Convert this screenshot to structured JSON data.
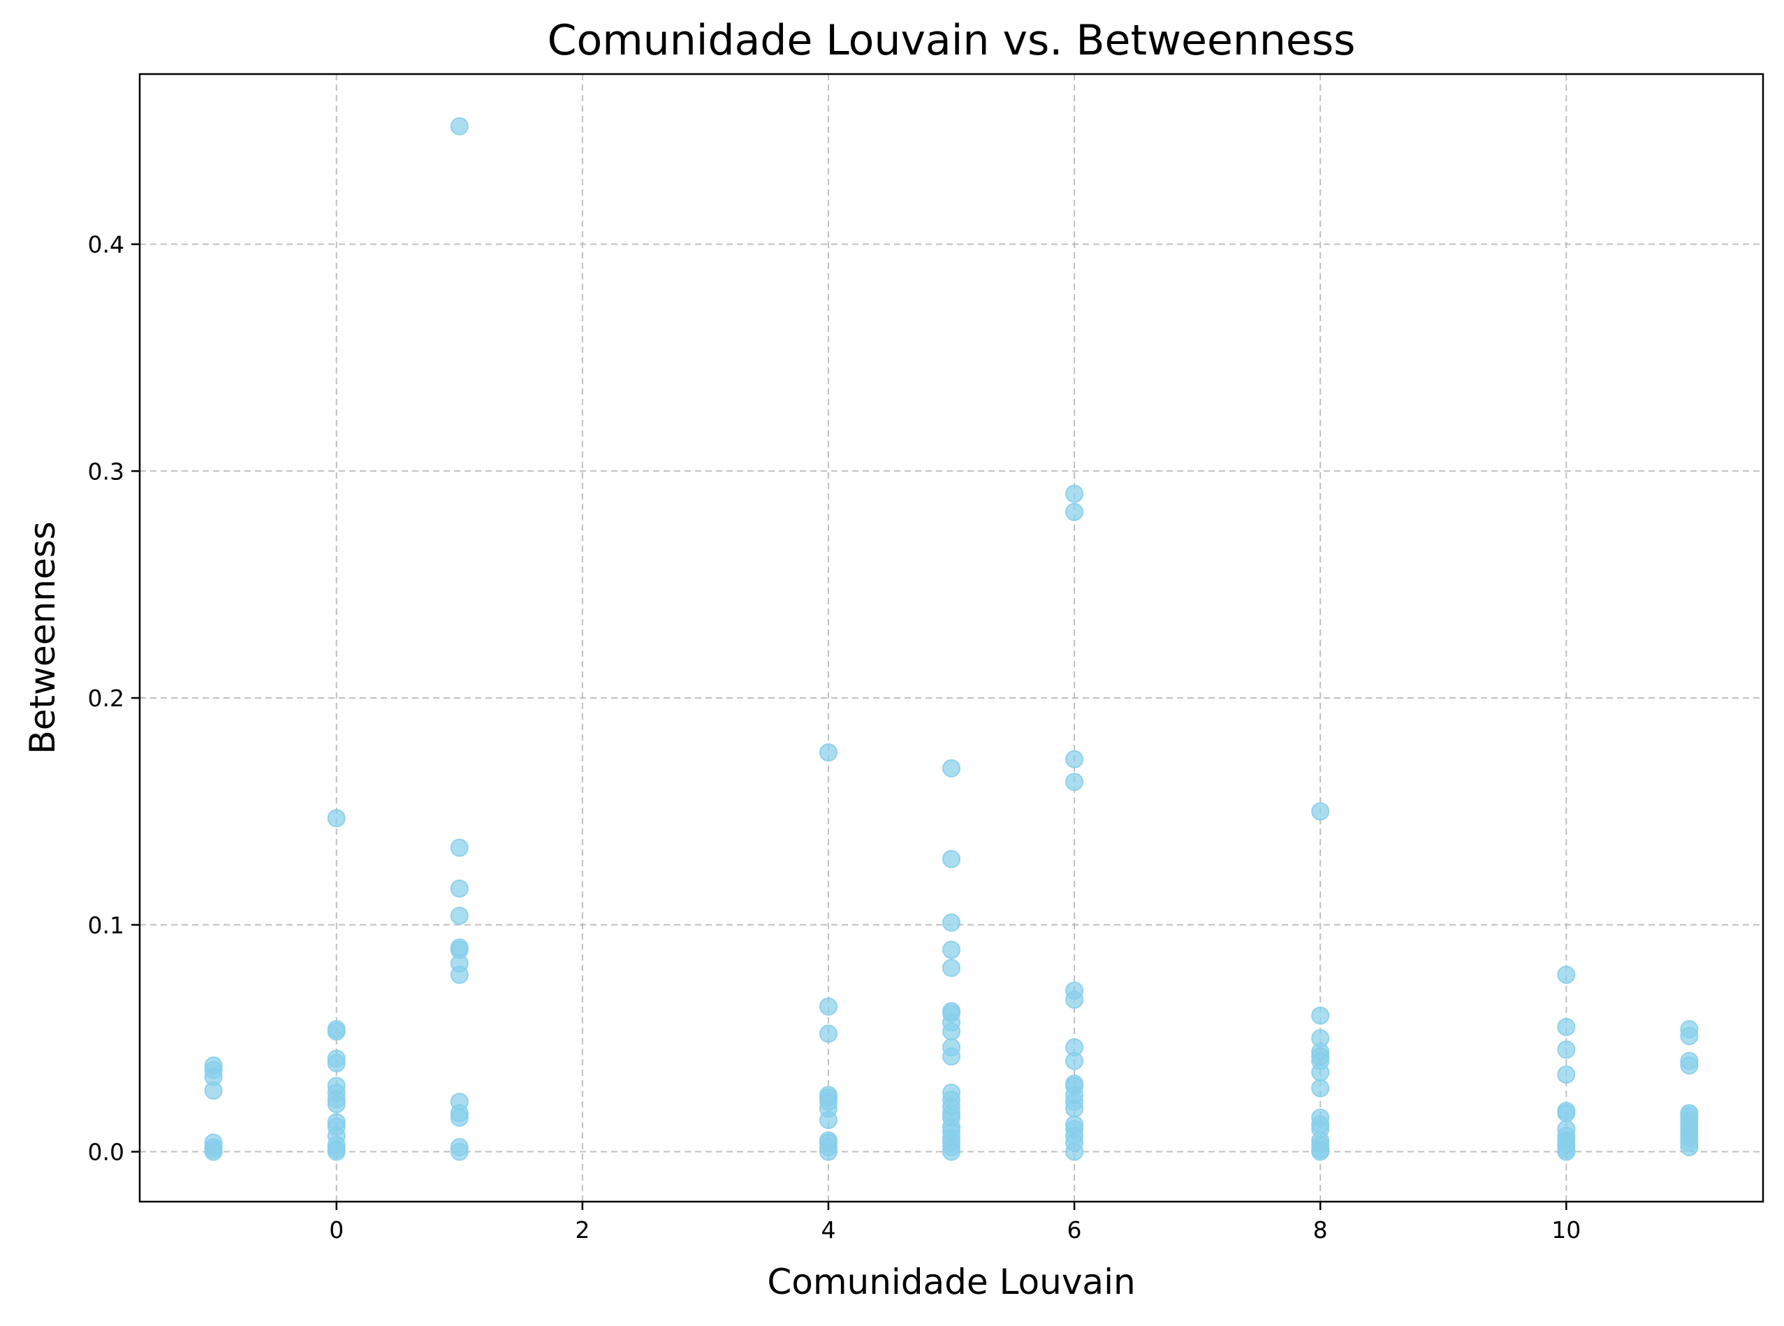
{
  "chart_data": {
    "type": "scatter",
    "title": "Comunidade Louvain vs. Betweenness",
    "xlabel": "Comunidade Louvain",
    "ylabel": "Betweenness",
    "xlim": [
      -1.6,
      11.6
    ],
    "ylim": [
      -0.022,
      0.475
    ],
    "xticks": [
      0,
      2,
      4,
      6,
      8,
      10
    ],
    "xtick_labels": [
      "0",
      "2",
      "4",
      "6",
      "8",
      "10"
    ],
    "yticks": [
      0.0,
      0.1,
      0.2,
      0.3,
      0.4
    ],
    "ytick_labels": [
      "0.0",
      "0.1",
      "0.2",
      "0.3",
      "0.4"
    ],
    "grid": true,
    "color": "#87ceeb",
    "points": [
      {
        "x": -1,
        "y": 0.038
      },
      {
        "x": -1,
        "y": 0.036
      },
      {
        "x": -1,
        "y": 0.033
      },
      {
        "x": -1,
        "y": 0.027
      },
      {
        "x": -1,
        "y": 0.004
      },
      {
        "x": -1,
        "y": 0.002
      },
      {
        "x": -1,
        "y": 0.001
      },
      {
        "x": -1,
        "y": 0.0
      },
      {
        "x": 0,
        "y": 0.147
      },
      {
        "x": 0,
        "y": 0.054
      },
      {
        "x": 0,
        "y": 0.053
      },
      {
        "x": 0,
        "y": 0.041
      },
      {
        "x": 0,
        "y": 0.039
      },
      {
        "x": 0,
        "y": 0.029
      },
      {
        "x": 0,
        "y": 0.026
      },
      {
        "x": 0,
        "y": 0.023
      },
      {
        "x": 0,
        "y": 0.021
      },
      {
        "x": 0,
        "y": 0.013
      },
      {
        "x": 0,
        "y": 0.011
      },
      {
        "x": 0,
        "y": 0.007
      },
      {
        "x": 0,
        "y": 0.003
      },
      {
        "x": 0,
        "y": 0.001
      },
      {
        "x": 0,
        "y": 0.0
      },
      {
        "x": 1,
        "y": 0.452
      },
      {
        "x": 1,
        "y": 0.134
      },
      {
        "x": 1,
        "y": 0.116
      },
      {
        "x": 1,
        "y": 0.104
      },
      {
        "x": 1,
        "y": 0.09
      },
      {
        "x": 1,
        "y": 0.089
      },
      {
        "x": 1,
        "y": 0.083
      },
      {
        "x": 1,
        "y": 0.078
      },
      {
        "x": 1,
        "y": 0.022
      },
      {
        "x": 1,
        "y": 0.017
      },
      {
        "x": 1,
        "y": 0.015
      },
      {
        "x": 1,
        "y": 0.002
      },
      {
        "x": 1,
        "y": 0.0
      },
      {
        "x": 4,
        "y": 0.176
      },
      {
        "x": 4,
        "y": 0.064
      },
      {
        "x": 4,
        "y": 0.052
      },
      {
        "x": 4,
        "y": 0.025
      },
      {
        "x": 4,
        "y": 0.024
      },
      {
        "x": 4,
        "y": 0.022
      },
      {
        "x": 4,
        "y": 0.019
      },
      {
        "x": 4,
        "y": 0.014
      },
      {
        "x": 4,
        "y": 0.005
      },
      {
        "x": 4,
        "y": 0.004
      },
      {
        "x": 4,
        "y": 0.002
      },
      {
        "x": 4,
        "y": 0.0
      },
      {
        "x": 5,
        "y": 0.169
      },
      {
        "x": 5,
        "y": 0.129
      },
      {
        "x": 5,
        "y": 0.101
      },
      {
        "x": 5,
        "y": 0.089
      },
      {
        "x": 5,
        "y": 0.081
      },
      {
        "x": 5,
        "y": 0.062
      },
      {
        "x": 5,
        "y": 0.061
      },
      {
        "x": 5,
        "y": 0.057
      },
      {
        "x": 5,
        "y": 0.053
      },
      {
        "x": 5,
        "y": 0.046
      },
      {
        "x": 5,
        "y": 0.042
      },
      {
        "x": 5,
        "y": 0.026
      },
      {
        "x": 5,
        "y": 0.023
      },
      {
        "x": 5,
        "y": 0.02
      },
      {
        "x": 5,
        "y": 0.017
      },
      {
        "x": 5,
        "y": 0.015
      },
      {
        "x": 5,
        "y": 0.011
      },
      {
        "x": 5,
        "y": 0.009
      },
      {
        "x": 5,
        "y": 0.006
      },
      {
        "x": 5,
        "y": 0.004
      },
      {
        "x": 5,
        "y": 0.002
      },
      {
        "x": 5,
        "y": 0.0
      },
      {
        "x": 6,
        "y": 0.29
      },
      {
        "x": 6,
        "y": 0.282
      },
      {
        "x": 6,
        "y": 0.173
      },
      {
        "x": 6,
        "y": 0.163
      },
      {
        "x": 6,
        "y": 0.071
      },
      {
        "x": 6,
        "y": 0.067
      },
      {
        "x": 6,
        "y": 0.046
      },
      {
        "x": 6,
        "y": 0.04
      },
      {
        "x": 6,
        "y": 0.03
      },
      {
        "x": 6,
        "y": 0.029
      },
      {
        "x": 6,
        "y": 0.025
      },
      {
        "x": 6,
        "y": 0.022
      },
      {
        "x": 6,
        "y": 0.019
      },
      {
        "x": 6,
        "y": 0.012
      },
      {
        "x": 6,
        "y": 0.01
      },
      {
        "x": 6,
        "y": 0.007
      },
      {
        "x": 6,
        "y": 0.004
      },
      {
        "x": 6,
        "y": 0.0
      },
      {
        "x": 8,
        "y": 0.15
      },
      {
        "x": 8,
        "y": 0.06
      },
      {
        "x": 8,
        "y": 0.05
      },
      {
        "x": 8,
        "y": 0.044
      },
      {
        "x": 8,
        "y": 0.042
      },
      {
        "x": 8,
        "y": 0.04
      },
      {
        "x": 8,
        "y": 0.035
      },
      {
        "x": 8,
        "y": 0.028
      },
      {
        "x": 8,
        "y": 0.015
      },
      {
        "x": 8,
        "y": 0.012
      },
      {
        "x": 8,
        "y": 0.01
      },
      {
        "x": 8,
        "y": 0.005
      },
      {
        "x": 8,
        "y": 0.003
      },
      {
        "x": 8,
        "y": 0.001
      },
      {
        "x": 8,
        "y": 0.0
      },
      {
        "x": 10,
        "y": 0.078
      },
      {
        "x": 10,
        "y": 0.055
      },
      {
        "x": 10,
        "y": 0.045
      },
      {
        "x": 10,
        "y": 0.034
      },
      {
        "x": 10,
        "y": 0.018
      },
      {
        "x": 10,
        "y": 0.017
      },
      {
        "x": 10,
        "y": 0.01
      },
      {
        "x": 10,
        "y": 0.007
      },
      {
        "x": 10,
        "y": 0.005
      },
      {
        "x": 10,
        "y": 0.003
      },
      {
        "x": 10,
        "y": 0.001
      },
      {
        "x": 10,
        "y": 0.0
      },
      {
        "x": 11,
        "y": 0.054
      },
      {
        "x": 11,
        "y": 0.051
      },
      {
        "x": 11,
        "y": 0.04
      },
      {
        "x": 11,
        "y": 0.038
      },
      {
        "x": 11,
        "y": 0.017
      },
      {
        "x": 11,
        "y": 0.016
      },
      {
        "x": 11,
        "y": 0.014
      },
      {
        "x": 11,
        "y": 0.012
      },
      {
        "x": 11,
        "y": 0.01
      },
      {
        "x": 11,
        "y": 0.008
      },
      {
        "x": 11,
        "y": 0.006
      },
      {
        "x": 11,
        "y": 0.004
      },
      {
        "x": 11,
        "y": 0.002
      }
    ]
  }
}
